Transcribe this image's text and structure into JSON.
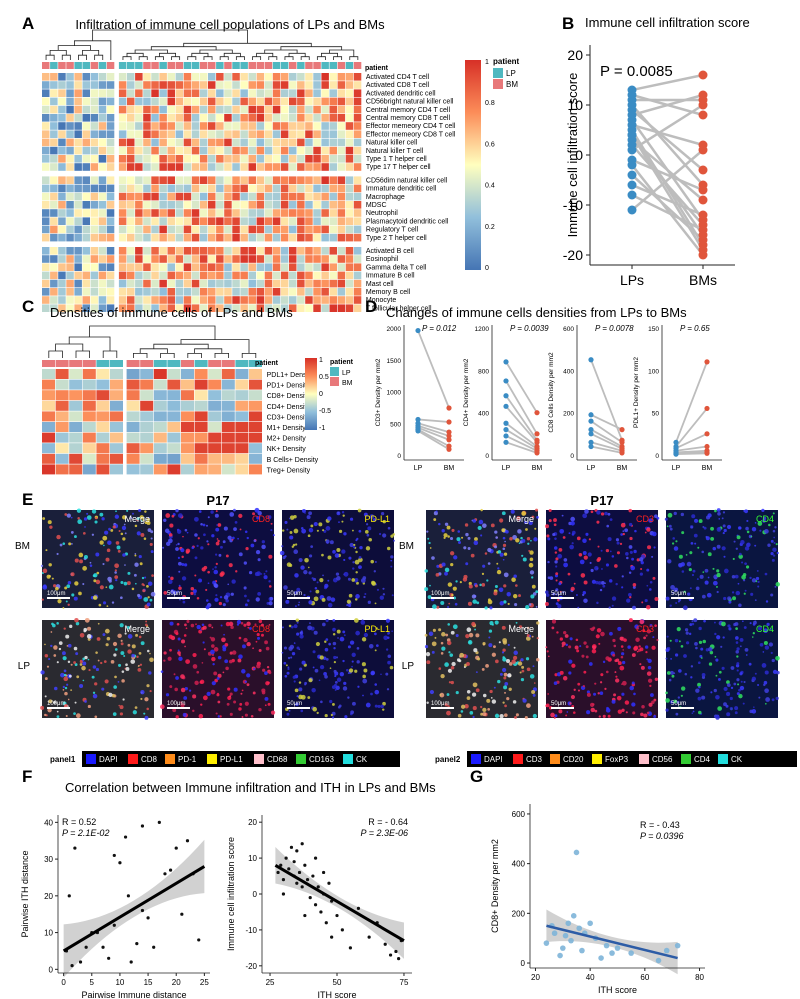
{
  "panel_letters": {
    "a": "A",
    "b": "B",
    "c": "C",
    "d": "D",
    "e": "E",
    "f": "F",
    "g": "G"
  },
  "panelA": {
    "title": "Infiltration of immune cell populations of LPs and BMs",
    "legend_title": "patient",
    "legend_items": [
      "LP",
      "BM"
    ],
    "scale_ticks": [
      "1",
      "0.8",
      "0.6",
      "0.4",
      "0.2",
      "0"
    ],
    "groups": [
      [
        "Activated CD4 T cell",
        "Activated CD8 T cell",
        "Activated dendritic cell",
        "CD56bright natural killer cell",
        "Central memory CD4 T cell",
        "Central memory CD8 T cell",
        "Effector memeory CD4 T cell",
        "Effector memeory CD8 T cell",
        "Natural killer cell",
        "Natural killer T cell",
        "Type 1 T helper cell",
        "Type 17 T helper cell"
      ],
      [
        "CD56dim natural killer cell",
        "Immature dendritic cell",
        "Macrophage",
        "MDSC",
        "Neutrophil",
        "Plasmacytoid dendritic cell",
        "Regulatory T cell",
        "Type 2 T helper cell"
      ],
      [
        "Activated B cell",
        "Eosinophil",
        "Gamma delta T cell",
        "Immature  B cell",
        "Mast cell",
        "Memory B cell",
        "Monocyte",
        "T follicular helper cell"
      ]
    ]
  },
  "panelB": {
    "title": "Immune cell infiltration score",
    "pvalue": "P = 0.0085",
    "ylabel": "Immune cell infiltration score",
    "xticks": [
      "LPs",
      "BMs"
    ],
    "yticks": [
      "20",
      "10",
      "0",
      "-10",
      "-20"
    ],
    "ylim": [
      -22,
      22
    ],
    "pairs": [
      [
        13,
        16
      ],
      [
        12,
        8
      ],
      [
        11,
        11
      ],
      [
        10,
        -6
      ],
      [
        9,
        -3
      ],
      [
        8,
        12
      ],
      [
        7,
        -13
      ],
      [
        6,
        2
      ],
      [
        5,
        -18
      ],
      [
        4,
        -19
      ],
      [
        3,
        -9
      ],
      [
        2,
        -14
      ],
      [
        1,
        10
      ],
      [
        -1,
        -7
      ],
      [
        -2,
        -20
      ],
      [
        -4,
        -17
      ],
      [
        -6,
        -12
      ],
      [
        -8,
        -15
      ],
      [
        -11,
        1
      ],
      [
        4,
        -16
      ]
    ]
  },
  "panelC": {
    "title": "Densities of immune cells of LPs and BMs",
    "legend_title": "patient",
    "legend_items": [
      "LP",
      "BM"
    ],
    "scale_ticks": [
      "1",
      "0.5",
      "0",
      "-0.5",
      "-1"
    ],
    "rows": [
      "PDL1+ Density",
      "PD1+ Density",
      "CD8+ Density",
      "CD4+ Density",
      "CD3+ Density",
      "M1+ Density",
      "M2+ Density",
      "NK+ Density",
      "B Cells+ Density",
      "Treg+ Density"
    ]
  },
  "panelD": {
    "title": "Changes of immune cells densities from LPs to BMs",
    "subplots": [
      {
        "ylabel": "CD3+ Density per mm2",
        "p": "P = 0.012",
        "ymax": 2000,
        "yticks": [
          "2000",
          "1500",
          "1000",
          "500",
          "0"
        ],
        "xticks": [
          "LP",
          "BM"
        ],
        "pairs": [
          [
            1960,
            740
          ],
          [
            560,
            520
          ],
          [
            500,
            360
          ],
          [
            460,
            300
          ],
          [
            430,
            240
          ],
          [
            400,
            140
          ],
          [
            380,
            90
          ]
        ]
      },
      {
        "ylabel": "CD4+ Density per mm2",
        "p": "P = 0.0039",
        "ymax": 1200,
        "yticks": [
          "1200",
          "800",
          "400",
          "0"
        ],
        "xticks": [
          "LP",
          "BM"
        ],
        "pairs": [
          [
            880,
            400
          ],
          [
            700,
            200
          ],
          [
            560,
            140
          ],
          [
            460,
            120
          ],
          [
            300,
            80
          ],
          [
            240,
            60
          ],
          [
            180,
            40
          ],
          [
            120,
            20
          ]
        ]
      },
      {
        "ylabel": "CD8 Cells Density per mm2",
        "p": "P = 0.0078",
        "ymax": 600,
        "yticks": [
          "600",
          "400",
          "200",
          "0"
        ],
        "xticks": [
          "LP",
          "BM"
        ],
        "pairs": [
          [
            450,
            70
          ],
          [
            190,
            120
          ],
          [
            160,
            60
          ],
          [
            120,
            40
          ],
          [
            100,
            30
          ],
          [
            60,
            20
          ],
          [
            40,
            10
          ]
        ]
      },
      {
        "ylabel": "PDL1+ Density per mm2",
        "p": "P = 0.65",
        "ymax": 150,
        "yticks": [
          "150",
          "100",
          "50",
          "0"
        ],
        "xticks": [
          "LP",
          "BM"
        ],
        "pairs": [
          [
            15,
            110
          ],
          [
            10,
            55
          ],
          [
            8,
            25
          ],
          [
            5,
            10
          ],
          [
            3,
            5
          ],
          [
            2,
            3
          ],
          [
            1,
            2
          ]
        ]
      }
    ]
  },
  "panelE": {
    "left": {
      "patient": "P17",
      "rows": [
        "BM",
        "LP"
      ],
      "channels": [
        {
          "label": "Merge",
          "color": "#ffffff"
        },
        {
          "label": "CD8",
          "color": "#ff2020"
        },
        {
          "label": "PD-L1",
          "color": "#ffee00"
        }
      ],
      "scalebars": [
        "100μm",
        "50μm",
        "50μm",
        "100μm",
        "100μm",
        "50μm"
      ]
    },
    "right": {
      "patient": "P17",
      "rows": [
        "BM",
        "LP"
      ],
      "channels": [
        {
          "label": "Merge",
          "color": "#ffffff"
        },
        {
          "label": "CD3",
          "color": "#ff2020"
        },
        {
          "label": "CD4",
          "color": "#33ff33"
        }
      ],
      "scalebars": [
        "100μm",
        "50μm",
        "50μm",
        "100μm",
        "50μm",
        "50μm"
      ]
    },
    "panel1": {
      "name": "panel1",
      "items": [
        {
          "label": "DAPI",
          "color": "#1a1aff"
        },
        {
          "label": "CD8",
          "color": "#ff1a1a"
        },
        {
          "label": "PD-1",
          "color": "#ff8c1a"
        },
        {
          "label": "PD-L1",
          "color": "#ffee00"
        },
        {
          "label": "CD68",
          "color": "#ffc0cb"
        },
        {
          "label": "CD163",
          "color": "#33cc33"
        },
        {
          "label": "CK",
          "color": "#22dddd"
        }
      ]
    },
    "panel2": {
      "name": "panel2",
      "items": [
        {
          "label": "DAPI",
          "color": "#1a1aff"
        },
        {
          "label": "CD3",
          "color": "#ff1a1a"
        },
        {
          "label": "CD20",
          "color": "#ff8c1a"
        },
        {
          "label": "FoxP3",
          "color": "#ffee00"
        },
        {
          "label": "CD56",
          "color": "#ffc0cb"
        },
        {
          "label": "CD4",
          "color": "#33cc33"
        },
        {
          "label": "CK",
          "color": "#22dddd"
        }
      ]
    }
  },
  "panelF": {
    "title": "Correlation between Immune infiltration and ITH  in LPs and BMs",
    "left": {
      "r": "R = 0.52",
      "p": "P = 2.1E-02",
      "xlabel": "Pairwise Immune distance",
      "ylabel": "Pairwise ITH distance",
      "xticks": [
        "0",
        "5",
        "10",
        "15",
        "20",
        "25"
      ],
      "yticks": [
        "40",
        "30",
        "20",
        "10",
        "0"
      ],
      "xlim": [
        -1,
        26
      ],
      "ylim": [
        -1,
        42
      ],
      "points": [
        [
          0.5,
          5
        ],
        [
          1,
          20
        ],
        [
          1.5,
          1
        ],
        [
          2,
          33
        ],
        [
          3,
          2
        ],
        [
          4,
          6
        ],
        [
          5,
          10
        ],
        [
          6,
          10
        ],
        [
          7,
          6
        ],
        [
          8,
          3
        ],
        [
          9,
          12
        ],
        [
          10,
          29
        ],
        [
          11,
          36
        ],
        [
          11.5,
          20
        ],
        [
          12,
          2
        ],
        [
          13,
          7
        ],
        [
          14,
          16
        ],
        [
          15,
          14
        ],
        [
          16,
          6
        ],
        [
          17,
          40
        ],
        [
          18,
          26
        ],
        [
          19,
          27
        ],
        [
          20,
          33
        ],
        [
          21,
          15
        ],
        [
          22,
          35
        ],
        [
          23,
          26
        ],
        [
          24,
          8
        ],
        [
          9,
          31
        ],
        [
          14,
          39
        ]
      ],
      "fit": [
        [
          0,
          5
        ],
        [
          25,
          28
        ]
      ]
    },
    "right": {
      "r": "R = - 0.64",
      "p": "P = 2.3E-06",
      "xlabel": "ITH score",
      "ylabel": "Immune cell infiltration score",
      "xticks": [
        "25",
        "50",
        "75"
      ],
      "yticks": [
        "20",
        "10",
        "0",
        "-10",
        "-20"
      ],
      "xlim": [
        22,
        78
      ],
      "ylim": [
        -22,
        22
      ],
      "points": [
        [
          28,
          6
        ],
        [
          29,
          8
        ],
        [
          30,
          4
        ],
        [
          30,
          0
        ],
        [
          31,
          10
        ],
        [
          32,
          7
        ],
        [
          33,
          13
        ],
        [
          34,
          9
        ],
        [
          34,
          5
        ],
        [
          35,
          12
        ],
        [
          35,
          3
        ],
        [
          36,
          6
        ],
        [
          37,
          14
        ],
        [
          37,
          2
        ],
        [
          38,
          8
        ],
        [
          39,
          4
        ],
        [
          40,
          -1
        ],
        [
          41,
          5
        ],
        [
          42,
          -3
        ],
        [
          42,
          10
        ],
        [
          43,
          2
        ],
        [
          44,
          -5
        ],
        [
          45,
          0
        ],
        [
          46,
          -8
        ],
        [
          47,
          3
        ],
        [
          48,
          -2
        ],
        [
          50,
          -6
        ],
        [
          52,
          -10
        ],
        [
          55,
          -15
        ],
        [
          58,
          -4
        ],
        [
          62,
          -12
        ],
        [
          65,
          -8
        ],
        [
          68,
          -14
        ],
        [
          70,
          -17
        ],
        [
          72,
          -16
        ],
        [
          73,
          -18
        ],
        [
          74,
          -13
        ],
        [
          38,
          -6
        ],
        [
          45,
          6
        ],
        [
          48,
          -12
        ]
      ],
      "fit": [
        [
          27,
          8
        ],
        [
          75,
          -13
        ]
      ]
    }
  },
  "panelG": {
    "r": "R = - 0.43",
    "p": "P = 0.0396",
    "xlabel": "ITH score",
    "ylabel": "CD8+ Density per mm2",
    "xticks": [
      "20",
      "40",
      "60",
      "80"
    ],
    "yticks": [
      "600",
      "400",
      "200",
      "0"
    ],
    "xlim": [
      18,
      82
    ],
    "ylim": [
      -20,
      640
    ],
    "points": [
      [
        24,
        80
      ],
      [
        26,
        150
      ],
      [
        27,
        120
      ],
      [
        29,
        30
      ],
      [
        30,
        60
      ],
      [
        31,
        110
      ],
      [
        32,
        160
      ],
      [
        33,
        90
      ],
      [
        34,
        190
      ],
      [
        35,
        445
      ],
      [
        36,
        140
      ],
      [
        37,
        50
      ],
      [
        38,
        120
      ],
      [
        40,
        160
      ],
      [
        42,
        100
      ],
      [
        44,
        20
      ],
      [
        46,
        70
      ],
      [
        48,
        40
      ],
      [
        50,
        60
      ],
      [
        55,
        40
      ],
      [
        65,
        10
      ],
      [
        68,
        50
      ],
      [
        72,
        70
      ]
    ],
    "fit": [
      [
        24,
        150
      ],
      [
        72,
        20
      ]
    ]
  }
}
